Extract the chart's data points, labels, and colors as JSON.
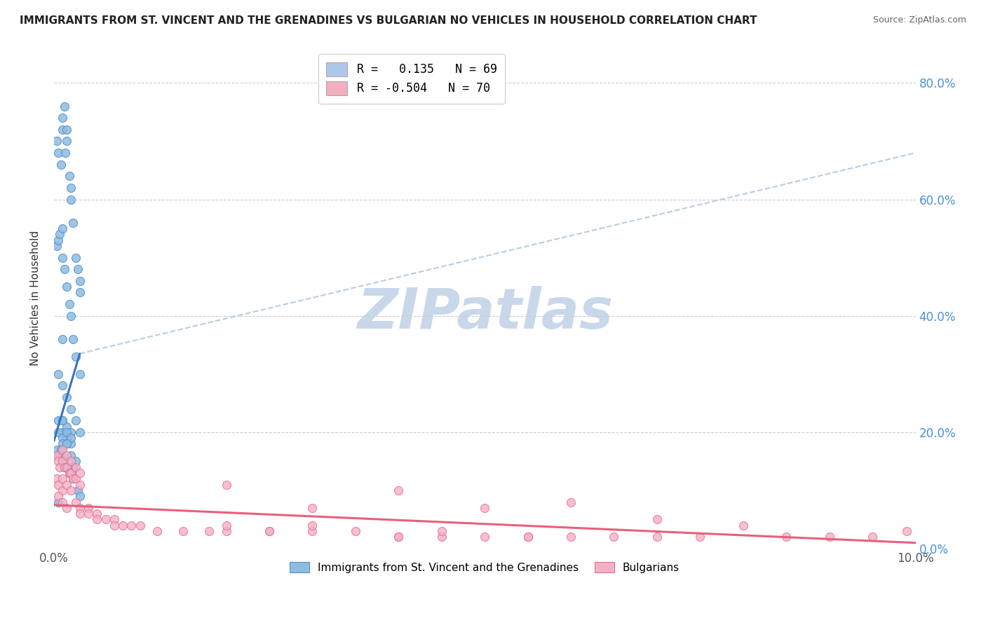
{
  "title": "IMMIGRANTS FROM ST. VINCENT AND THE GRENADINES VS BULGARIAN NO VEHICLES IN HOUSEHOLD CORRELATION CHART",
  "source": "Source: ZipAtlas.com",
  "ylabel": "No Vehicles in Household",
  "x_lim": [
    0.0,
    0.1
  ],
  "y_lim": [
    0.0,
    0.86
  ],
  "y_ticks": [
    0.0,
    0.2,
    0.4,
    0.6,
    0.8
  ],
  "legend1_label": "R =   0.135   N = 69",
  "legend2_label": "R = -0.504   N = 70",
  "legend1_color": "#adc8e8",
  "legend2_color": "#f5aec0",
  "line1_color": "#3575c0",
  "line2_color": "#e8607a",
  "dash_color": "#b0c8e0",
  "watermark_text": "ZIPatlas",
  "watermark_color": "#c8d8ea",
  "scatter1_color": "#90bce0",
  "scatter2_color": "#f5b0c5",
  "scatter1_edge": "#5090c8",
  "scatter2_edge": "#e07090",
  "blue_x": [
    0.0003,
    0.0005,
    0.0008,
    0.001,
    0.001,
    0.0012,
    0.0013,
    0.0015,
    0.0015,
    0.0018,
    0.002,
    0.002,
    0.0022,
    0.0025,
    0.0028,
    0.003,
    0.003,
    0.0003,
    0.0005,
    0.0007,
    0.001,
    0.001,
    0.0012,
    0.0015,
    0.0018,
    0.002,
    0.0022,
    0.0025,
    0.003,
    0.0005,
    0.001,
    0.0015,
    0.002,
    0.0025,
    0.003,
    0.0005,
    0.001,
    0.0015,
    0.002,
    0.0005,
    0.001,
    0.0015,
    0.002,
    0.0025,
    0.0003,
    0.0008,
    0.0012,
    0.0018,
    0.0022,
    0.001,
    0.0015,
    0.002,
    0.001,
    0.0005,
    0.001,
    0.0012,
    0.0015,
    0.0018,
    0.002,
    0.0022,
    0.0028,
    0.003,
    0.0005,
    0.001,
    0.0015,
    0.002,
    0.001,
    0.0008,
    0.0015
  ],
  "blue_y": [
    0.7,
    0.68,
    0.66,
    0.72,
    0.74,
    0.76,
    0.68,
    0.7,
    0.72,
    0.64,
    0.62,
    0.6,
    0.56,
    0.5,
    0.48,
    0.44,
    0.46,
    0.52,
    0.53,
    0.54,
    0.55,
    0.5,
    0.48,
    0.45,
    0.42,
    0.4,
    0.36,
    0.33,
    0.3,
    0.3,
    0.28,
    0.26,
    0.24,
    0.22,
    0.2,
    0.22,
    0.2,
    0.19,
    0.18,
    0.2,
    0.19,
    0.18,
    0.16,
    0.15,
    0.17,
    0.16,
    0.15,
    0.14,
    0.14,
    0.22,
    0.21,
    0.2,
    0.18,
    0.16,
    0.15,
    0.14,
    0.14,
    0.13,
    0.13,
    0.12,
    0.1,
    0.09,
    0.08,
    0.22,
    0.2,
    0.19,
    0.36,
    0.17,
    0.18
  ],
  "pink_x": [
    0.0003,
    0.0005,
    0.0007,
    0.001,
    0.001,
    0.0012,
    0.0015,
    0.0015,
    0.0018,
    0.002,
    0.002,
    0.0022,
    0.0025,
    0.0025,
    0.003,
    0.003,
    0.0003,
    0.0005,
    0.001,
    0.001,
    0.0015,
    0.002,
    0.0025,
    0.003,
    0.0005,
    0.001,
    0.0015,
    0.003,
    0.004,
    0.004,
    0.005,
    0.005,
    0.006,
    0.007,
    0.007,
    0.008,
    0.009,
    0.01,
    0.012,
    0.015,
    0.018,
    0.02,
    0.02,
    0.025,
    0.03,
    0.03,
    0.035,
    0.04,
    0.04,
    0.045,
    0.05,
    0.055,
    0.06,
    0.065,
    0.07,
    0.075,
    0.08,
    0.085,
    0.09,
    0.095,
    0.06,
    0.04,
    0.05,
    0.07,
    0.03,
    0.02,
    0.025,
    0.045,
    0.055,
    0.099
  ],
  "pink_y": [
    0.16,
    0.15,
    0.14,
    0.17,
    0.15,
    0.14,
    0.16,
    0.14,
    0.13,
    0.15,
    0.13,
    0.12,
    0.14,
    0.12,
    0.13,
    0.11,
    0.12,
    0.11,
    0.1,
    0.12,
    0.11,
    0.1,
    0.08,
    0.07,
    0.09,
    0.08,
    0.07,
    0.06,
    0.07,
    0.06,
    0.06,
    0.05,
    0.05,
    0.05,
    0.04,
    0.04,
    0.04,
    0.04,
    0.03,
    0.03,
    0.03,
    0.11,
    0.03,
    0.03,
    0.07,
    0.03,
    0.03,
    0.02,
    0.02,
    0.02,
    0.02,
    0.02,
    0.02,
    0.02,
    0.02,
    0.02,
    0.04,
    0.02,
    0.02,
    0.02,
    0.08,
    0.1,
    0.07,
    0.05,
    0.04,
    0.04,
    0.03,
    0.03,
    0.02,
    0.03
  ],
  "blue_line_x": [
    0.0,
    0.003
  ],
  "blue_line_y": [
    0.185,
    0.335
  ],
  "dash_line_x": [
    0.003,
    0.1
  ],
  "dash_line_y": [
    0.335,
    0.68
  ],
  "pink_line_x": [
    0.0,
    0.1
  ],
  "pink_line_y": [
    0.075,
    0.01
  ]
}
